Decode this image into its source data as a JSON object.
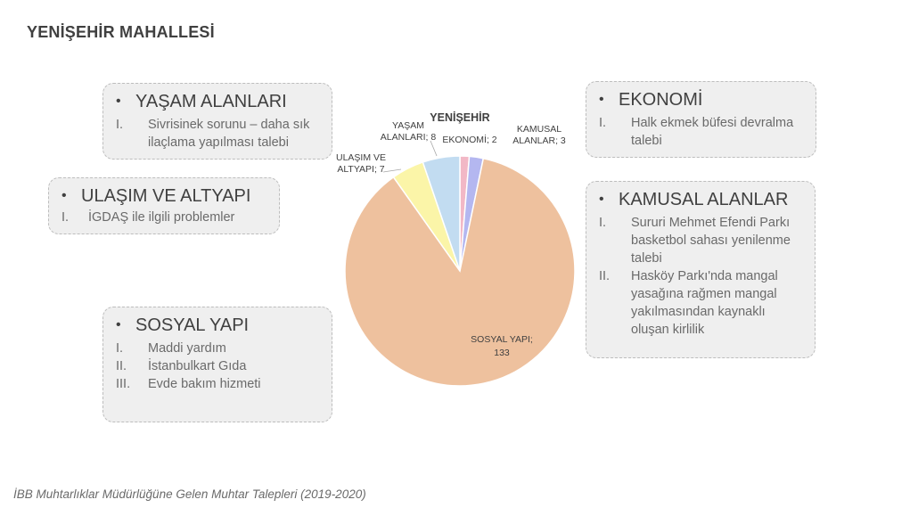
{
  "page_title": "YENİŞEHİR MAHALLESİ",
  "footer": "İBB Muhtarlıklar Müdürlüğüne Gelen Muhtar Talepleri (2019-2020)",
  "boxes": {
    "yasam": {
      "bullet": "•",
      "title": "YAŞAM ALANLARI",
      "items": [
        {
          "num": "I.",
          "text": "Sivrisinek sorunu – daha sık ilaçlama yapılması talebi"
        }
      ]
    },
    "ulasim": {
      "bullet": "•",
      "title": "ULAŞIM VE ALTYAPI",
      "items": [
        {
          "num": "I.",
          "text": "İGDAŞ ile ilgili problemler"
        }
      ]
    },
    "sosyal": {
      "bullet": "•",
      "title": "SOSYAL YAPI",
      "items": [
        {
          "num": "I.",
          "text": "Maddi yardım"
        },
        {
          "num": "II.",
          "text": "İstanbulkart Gıda"
        },
        {
          "num": "III.",
          "text": "Evde bakım hizmeti"
        }
      ]
    },
    "ekonomi": {
      "bullet": "•",
      "title": "EKONOMİ",
      "items": [
        {
          "num": "I.",
          "text": "Halk ekmek büfesi devralma talebi"
        }
      ]
    },
    "kamusal": {
      "bullet": "•",
      "title": "KAMUSAL ALANLAR",
      "items": [
        {
          "num": "I.",
          "text": "Sururi Mehmet Efendi Parkı basketbol sahası yenilenme talebi"
        },
        {
          "num": "II.",
          "text": "Hasköy Parkı'nda mangal yasağına rağmen mangal yakılmasından kaynaklı oluşan kirlilik"
        }
      ]
    }
  },
  "chart_data": {
    "type": "pie",
    "title": "YENİŞEHİR",
    "slices": [
      {
        "label": "EKONOMİ",
        "value": 2,
        "color": "#f2b8c6",
        "label_lines": [
          "EKONOMİ; 2"
        ]
      },
      {
        "label": "KAMUSAL ALANLAR",
        "value": 3,
        "color": "#b4b7f0",
        "label_lines": [
          "KAMUSAL",
          "ALANLAR; 3"
        ]
      },
      {
        "label": "SOSYAL YAPI",
        "value": 133,
        "color": "#eec19e",
        "label_lines": [
          "SOSYAL YAPI;",
          "133"
        ]
      },
      {
        "label": "ULAŞIM VE ALTYAPI",
        "value": 7,
        "color": "#fbf5a8",
        "label_lines": [
          "ULAŞIM VE",
          "ALTYAPI; 7"
        ]
      },
      {
        "label": "YAŞAM ALANLARI",
        "value": 8,
        "color": "#c2dcf1",
        "label_lines": [
          "YAŞAM",
          "ALANLARI; 8"
        ]
      }
    ]
  }
}
